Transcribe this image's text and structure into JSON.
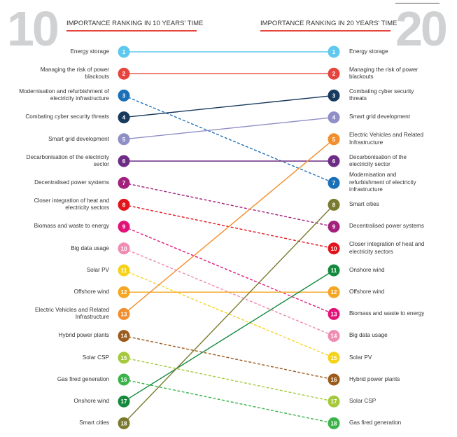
{
  "header": {
    "left_number": "10",
    "right_number": "20",
    "left_title": "IMPORTANCE RANKING IN 10 YEARS' TIME",
    "right_title": "IMPORTANCE RANKING IN 20 YEARS' TIME"
  },
  "left_items": [
    {
      "rank": "1",
      "label": "Energy storage",
      "color": "#5ec8ee",
      "to": 1,
      "dashed": false
    },
    {
      "rank": "2",
      "label": "Managing the risk of power blackouts",
      "color": "#e6453e",
      "to": 2,
      "dashed": false
    },
    {
      "rank": "3",
      "label": "Modernisation and refurbishment of electricity infrastructure",
      "color": "#1a6fb7",
      "to": 7,
      "dashed": true
    },
    {
      "rank": "4",
      "label": "Combating cyber security threats",
      "color": "#183a5e",
      "to": 3,
      "dashed": false
    },
    {
      "rank": "5",
      "label": "Smart grid development",
      "color": "#8f8ec6",
      "to": 4,
      "dashed": false
    },
    {
      "rank": "6",
      "label": "Decarbonisation of the electricity sector",
      "color": "#6d2c86",
      "to": 6,
      "dashed": false
    },
    {
      "rank": "7",
      "label": "Decentralised power systems",
      "color": "#a31f7c",
      "to": 9,
      "dashed": true
    },
    {
      "rank": "8",
      "label": "Closer integration of heat and electricity sectors",
      "color": "#e1141c",
      "to": 10,
      "dashed": true
    },
    {
      "rank": "9",
      "label": "Biomass and waste to energy",
      "color": "#e2127a",
      "to": 13,
      "dashed": true
    },
    {
      "rank": "10",
      "label": "Big data usage",
      "color": "#f08bb2",
      "to": 14,
      "dashed": true
    },
    {
      "rank": "11",
      "label": "Solar PV",
      "color": "#f6d31a",
      "to": 15,
      "dashed": true
    },
    {
      "rank": "12",
      "label": "Offshore wind",
      "color": "#f5a623",
      "to": 12,
      "dashed": false
    },
    {
      "rank": "13",
      "label": "Electric Vehicles and Related Infrastructure",
      "color": "#f28e2b",
      "to": 5,
      "dashed": false
    },
    {
      "rank": "14",
      "label": "Hybrid power plants",
      "color": "#9c5a1b",
      "to": 16,
      "dashed": true
    },
    {
      "rank": "15",
      "label": "Solar CSP",
      "color": "#a5c93b",
      "to": 17,
      "dashed": true
    },
    {
      "rank": "16",
      "label": "Gas fired generation",
      "color": "#3bb34a",
      "to": 18,
      "dashed": true
    },
    {
      "rank": "17",
      "label": "Onshore wind",
      "color": "#138a3e",
      "to": 11,
      "dashed": false
    },
    {
      "rank": "18",
      "label": "Smart cities",
      "color": "#7a7a2e",
      "to": 8,
      "dashed": false
    }
  ],
  "right_items": [
    {
      "rank": "1",
      "label": "Energy storage",
      "color": "#5ec8ee"
    },
    {
      "rank": "2",
      "label": "Managing the risk of power blackouts",
      "color": "#e6453e"
    },
    {
      "rank": "3",
      "label": "Combating cyber security threats",
      "color": "#183a5e"
    },
    {
      "rank": "4",
      "label": "Smart grid development",
      "color": "#8f8ec6"
    },
    {
      "rank": "5",
      "label": "Electric Vehicles and Related Infrastructure",
      "color": "#f28e2b"
    },
    {
      "rank": "6",
      "label": "Decarbonisation of the electricity sector",
      "color": "#6d2c86"
    },
    {
      "rank": "7",
      "label": "Modernisation and refurbishment of electricity infrastructure",
      "color": "#1a6fb7"
    },
    {
      "rank": "8",
      "label": "Smart cities",
      "color": "#7a7a2e"
    },
    {
      "rank": "9",
      "label": "Decentralised power systems",
      "color": "#a31f7c"
    },
    {
      "rank": "10",
      "label": "Closer integration of heat and electricity sectors",
      "color": "#e1141c"
    },
    {
      "rank": "11",
      "label": "Onshore wind",
      "color": "#138a3e"
    },
    {
      "rank": "12",
      "label": "Offshore wind",
      "color": "#f5a623"
    },
    {
      "rank": "13",
      "label": "Biomass and waste to energy",
      "color": "#e2127a"
    },
    {
      "rank": "14",
      "label": "Big data usage",
      "color": "#f08bb2"
    },
    {
      "rank": "15",
      "label": "Solar PV",
      "color": "#f6d31a"
    },
    {
      "rank": "16",
      "label": "Hybrid power plants",
      "color": "#9c5a1b"
    },
    {
      "rank": "17",
      "label": "Solar CSP",
      "color": "#a5c93b"
    },
    {
      "rank": "18",
      "label": "Gas fired generation",
      "color": "#3bb34a"
    }
  ]
}
